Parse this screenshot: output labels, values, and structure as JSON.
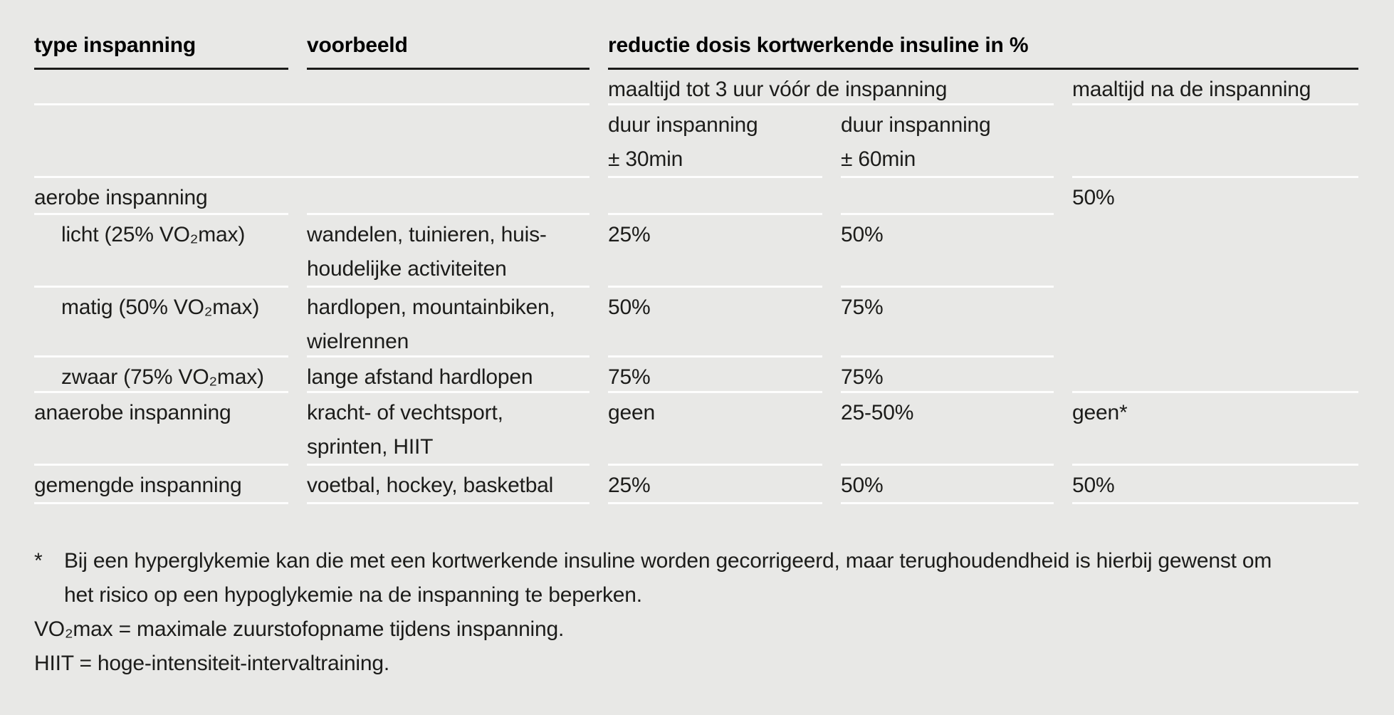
{
  "colors": {
    "background": "#e8e8e6",
    "divider_line": "#fdfdfd",
    "header_rule": "#1b1b19",
    "text": "#1c1c1a"
  },
  "table": {
    "col_headers": {
      "type": "type inspanning",
      "voorbeeld": "voorbeeld",
      "reductie": "reductie dosis kortwerkende insuline in %"
    },
    "sub_headers": {
      "maaltijd_voor": "maaltijd tot 3 uur vóór de inspanning",
      "maaltijd_na": "maaltijd na de inspanning",
      "duur30_lines": [
        "duur inspanning",
        "± 30min"
      ],
      "duur60_lines": [
        "duur inspanning",
        "± 60min"
      ]
    },
    "rows": [
      {
        "type": "aerobe inspanning",
        "maaltijd_na": "50%"
      },
      {
        "type": "licht (25% VO₂max)",
        "voorbeeld_lines": [
          "wandelen, tuinieren, huis-",
          "houdelijke activiteiten"
        ],
        "duur30": "25%",
        "duur60": "50%"
      },
      {
        "type": "matig (50% VO₂max)",
        "voorbeeld_lines": [
          "hardlopen, mountainbiken,",
          "wielrennen"
        ],
        "duur30": "50%",
        "duur60": "75%"
      },
      {
        "type": "zwaar (75% VO₂max)",
        "voorbeeld_lines": [
          "lange afstand hardlopen"
        ],
        "duur30": "75%",
        "duur60": "75%"
      },
      {
        "type": "anaerobe inspanning",
        "voorbeeld_lines": [
          "kracht- of vechtsport,",
          "sprinten, HIIT"
        ],
        "duur30": "geen",
        "duur60": "25-50%",
        "maaltijd_na": "geen*"
      },
      {
        "type": "gemengde inspanning",
        "voorbeeld_lines": [
          "voetbal, hockey, basketbal"
        ],
        "duur30": "25%",
        "duur60": "50%",
        "maaltijd_na": "50%"
      }
    ]
  },
  "footnotes": {
    "star_marker": "*",
    "star_lines": [
      "Bij een hyperglykemie kan die met een kortwerkende insuline worden gecorrigeerd, maar terughoudendheid is hierbij gewenst om",
      "het risico op een hypoglykemie na de inspanning te beperken."
    ],
    "vo2max": "VO₂max = maximale zuurstofopname tijdens inspanning.",
    "hiit": "HIIT = hoge-intensiteit-intervaltraining."
  }
}
